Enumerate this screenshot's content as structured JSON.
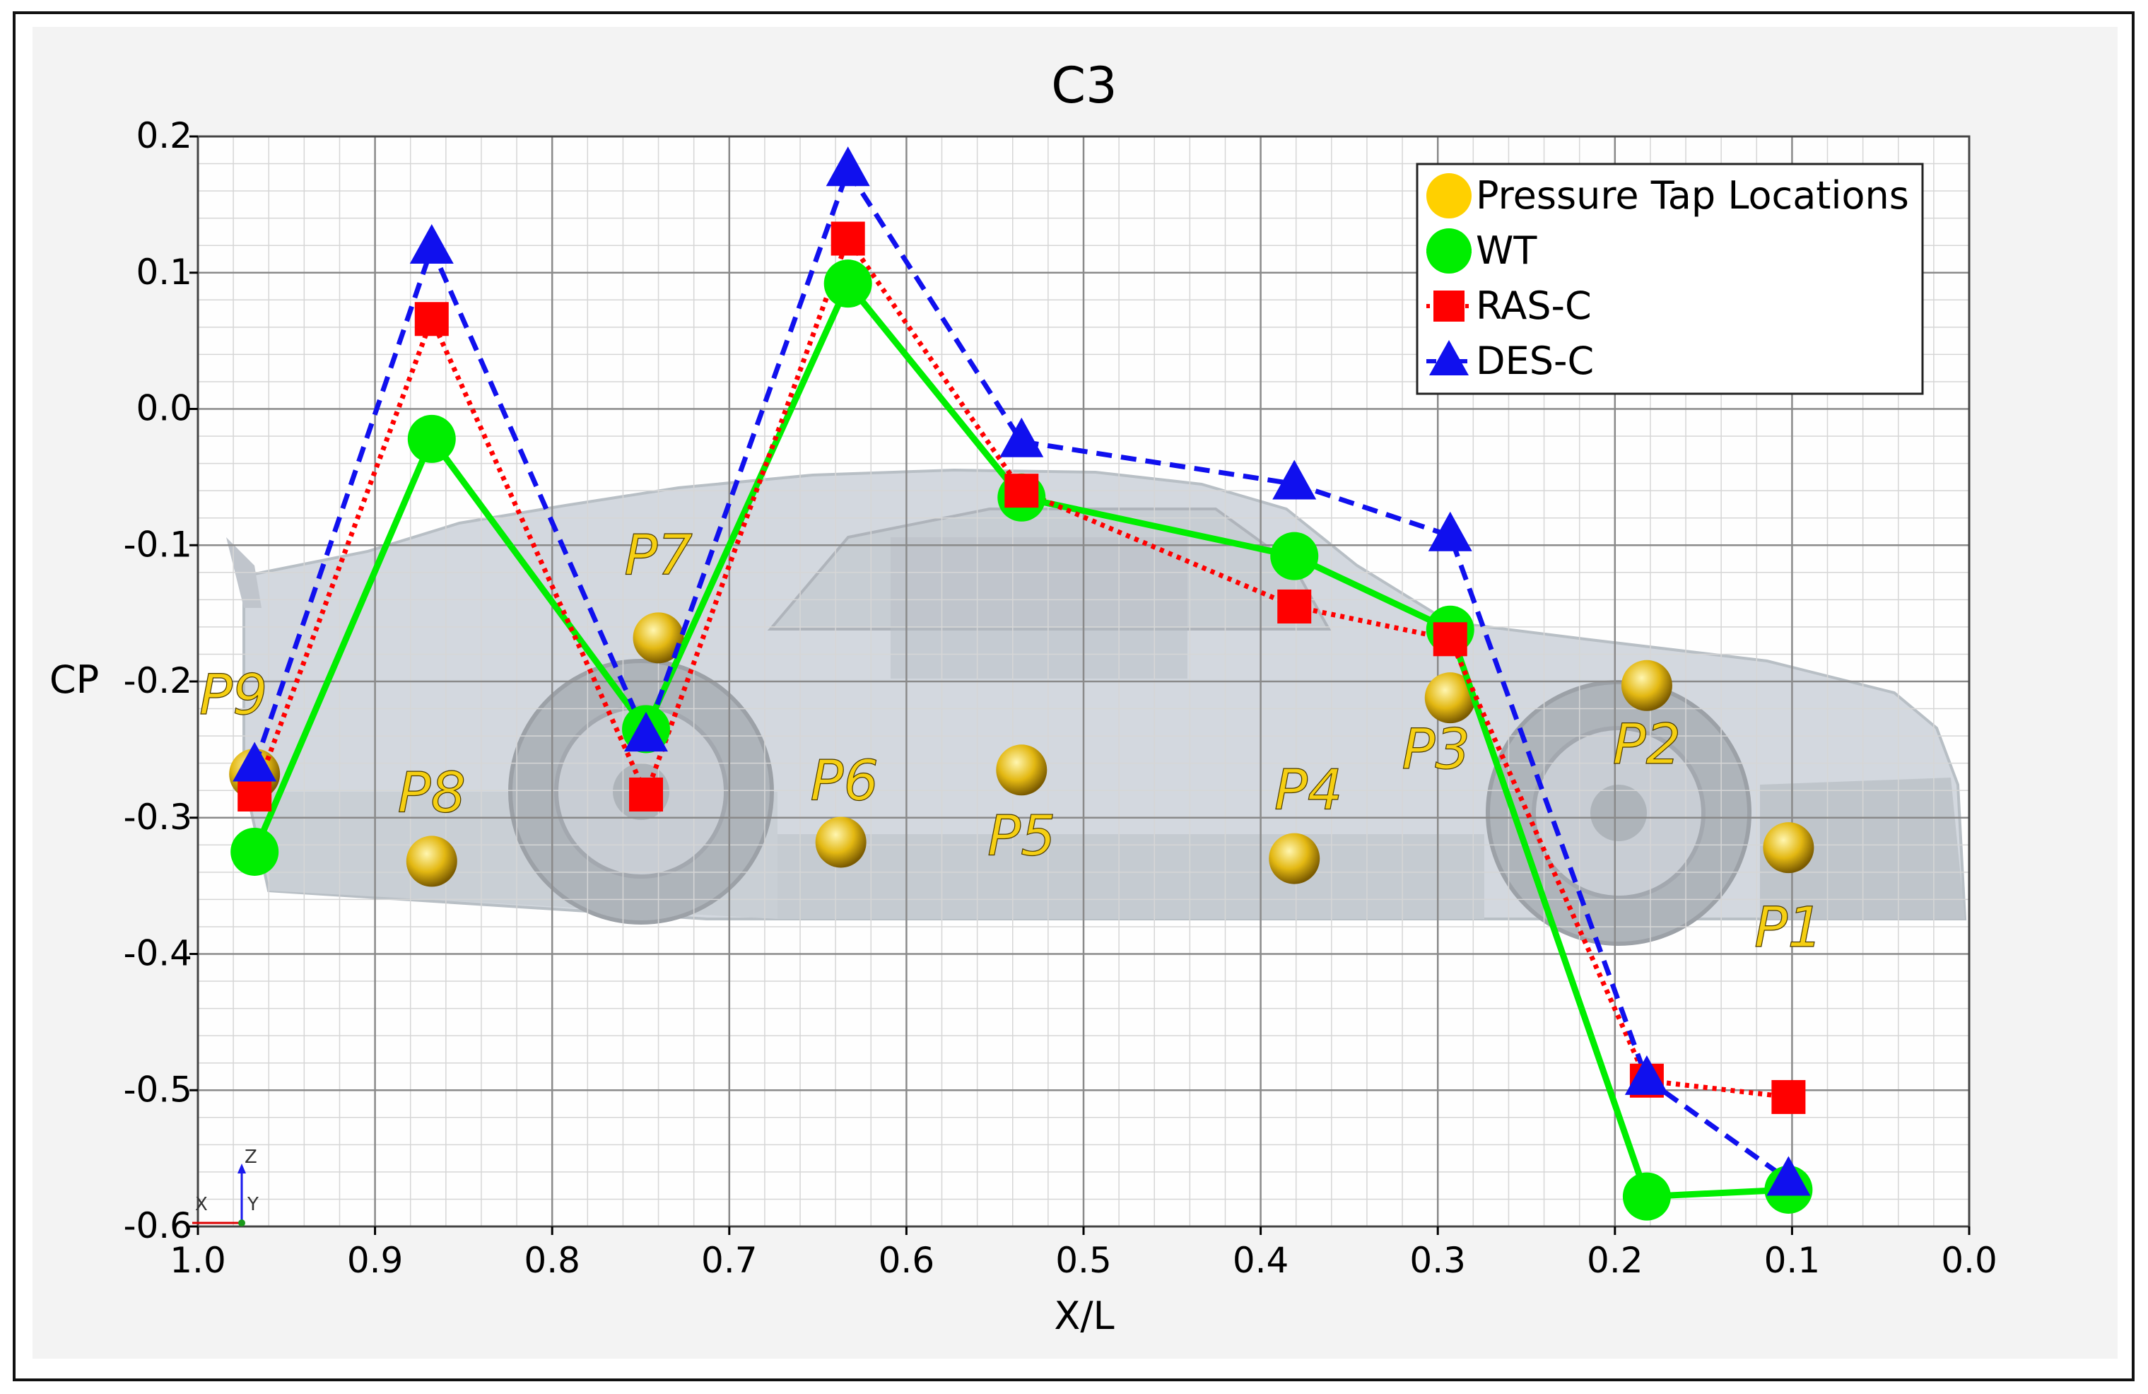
{
  "chart_data": {
    "type": "line",
    "title": "C3",
    "xlabel": "X/L",
    "ylabel": "CP",
    "xlim": [
      1.0,
      0.0
    ],
    "ylim": [
      -0.6,
      0.2
    ],
    "x_ticks": [
      "1.0",
      "0.9",
      "0.8",
      "0.7",
      "0.6",
      "0.5",
      "0.4",
      "0.3",
      "0.2",
      "0.1",
      "0.0"
    ],
    "y_ticks": [
      "0.2",
      "0.1",
      "0.0",
      "-0.1",
      "-0.2",
      "-0.3",
      "-0.4",
      "-0.5",
      "-0.6"
    ],
    "grid": true,
    "legend_position": "top-right",
    "series": [
      {
        "name": "WT",
        "color": "#00ee00",
        "marker": "circle",
        "line": "solid",
        "x": [
          0.968,
          0.868,
          0.747,
          0.633,
          0.535,
          0.381,
          0.293,
          0.182,
          0.102
        ],
        "y": [
          -0.325,
          -0.022,
          -0.235,
          0.092,
          -0.065,
          -0.108,
          -0.162,
          -0.578,
          -0.573
        ]
      },
      {
        "name": "RAS-C",
        "color": "#ff0000",
        "marker": "square",
        "line": "dotted",
        "x": [
          0.968,
          0.868,
          0.747,
          0.633,
          0.535,
          0.381,
          0.293,
          0.182,
          0.102
        ],
        "y": [
          -0.283,
          0.066,
          -0.283,
          0.125,
          -0.06,
          -0.145,
          -0.169,
          -0.493,
          -0.505
        ]
      },
      {
        "name": "DES-C",
        "color": "#1010ee",
        "marker": "triangle",
        "line": "dashed",
        "x": [
          0.968,
          0.868,
          0.747,
          0.633,
          0.535,
          0.381,
          0.293,
          0.182,
          0.102
        ],
        "y": [
          -0.262,
          0.118,
          -0.24,
          0.175,
          -0.024,
          -0.055,
          -0.093,
          -0.492,
          -0.566
        ]
      }
    ],
    "legend_entries": [
      {
        "label": "Pressure Tap Locations",
        "color": "#ffd000",
        "marker": "circle"
      },
      {
        "label": "WT",
        "color": "#00ee00",
        "marker": "circle",
        "line": "solid"
      },
      {
        "label": "RAS-C",
        "color": "#ff0000",
        "marker": "square",
        "line": "dotted"
      },
      {
        "label": "DES-C",
        "color": "#1010ee",
        "marker": "triangle",
        "line": "dashed"
      }
    ],
    "pressure_taps": [
      {
        "label": "P1",
        "x": 0.102,
        "y": -0.322
      },
      {
        "label": "P2",
        "x": 0.182,
        "y": -0.203
      },
      {
        "label": "P3",
        "x": 0.293,
        "y": -0.212
      },
      {
        "label": "P4",
        "x": 0.381,
        "y": -0.33
      },
      {
        "label": "P5",
        "x": 0.535,
        "y": -0.265
      },
      {
        "label": "P6",
        "x": 0.637,
        "y": -0.318
      },
      {
        "label": "P7",
        "x": 0.74,
        "y": -0.168
      },
      {
        "label": "P8",
        "x": 0.868,
        "y": -0.332
      },
      {
        "label": "P9",
        "x": 0.968,
        "y": -0.268
      }
    ]
  },
  "orientation_axes": {
    "z": "Z",
    "x": "X",
    "y": "Y"
  }
}
